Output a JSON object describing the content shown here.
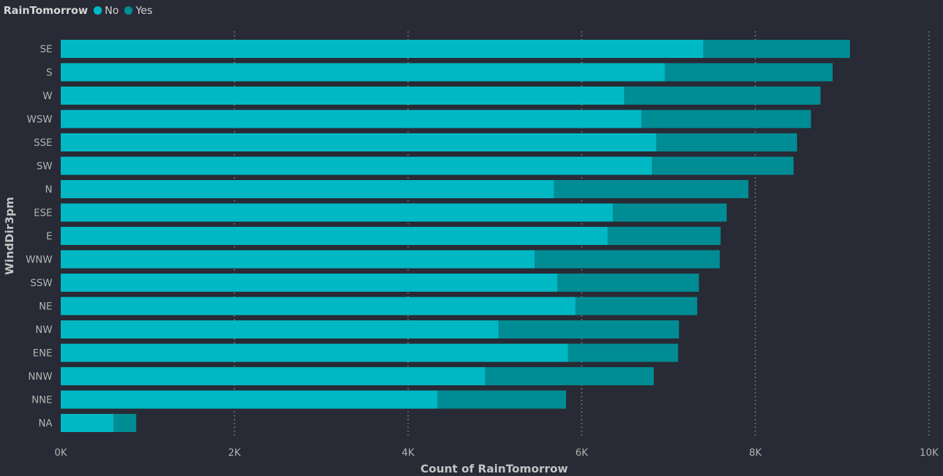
{
  "legend": {
    "title": "RainTomorrow",
    "entries": [
      {
        "label": "No",
        "color": "#00b8c4"
      },
      {
        "label": "Yes",
        "color": "#008c94"
      }
    ]
  },
  "chart_data": {
    "type": "bar",
    "orientation": "horizontal",
    "stacked": true,
    "title": "",
    "xlabel": "Count of RainTomorrow",
    "ylabel": "WindDir3pm",
    "xlim": [
      0,
      10000
    ],
    "x_ticks": [
      {
        "value": 0,
        "label": "0K"
      },
      {
        "value": 2000,
        "label": "2K"
      },
      {
        "value": 4000,
        "label": "4K"
      },
      {
        "value": 6000,
        "label": "6K"
      },
      {
        "value": 8000,
        "label": "8K"
      },
      {
        "value": 10000,
        "label": "10K"
      }
    ],
    "grid": true,
    "legend_position": "top-left",
    "categories": [
      "SE",
      "S",
      "W",
      "WSW",
      "SSE",
      "SW",
      "N",
      "ESE",
      "E",
      "WNW",
      "SSW",
      "NE",
      "NW",
      "ENE",
      "NNW",
      "NNE",
      "NA"
    ],
    "series": [
      {
        "name": "No",
        "color": "#00b8c4",
        "values": [
          7400,
          6960,
          6490,
          6690,
          6860,
          6810,
          5680,
          6360,
          6300,
          5460,
          5720,
          5930,
          5040,
          5840,
          4890,
          4340,
          610
        ]
      },
      {
        "name": "Yes",
        "color": "#008c94",
        "values": [
          1690,
          1930,
          2260,
          1950,
          1620,
          1630,
          2240,
          1310,
          1300,
          2130,
          1630,
          1400,
          2080,
          1270,
          1940,
          1480,
          260
        ]
      }
    ]
  }
}
